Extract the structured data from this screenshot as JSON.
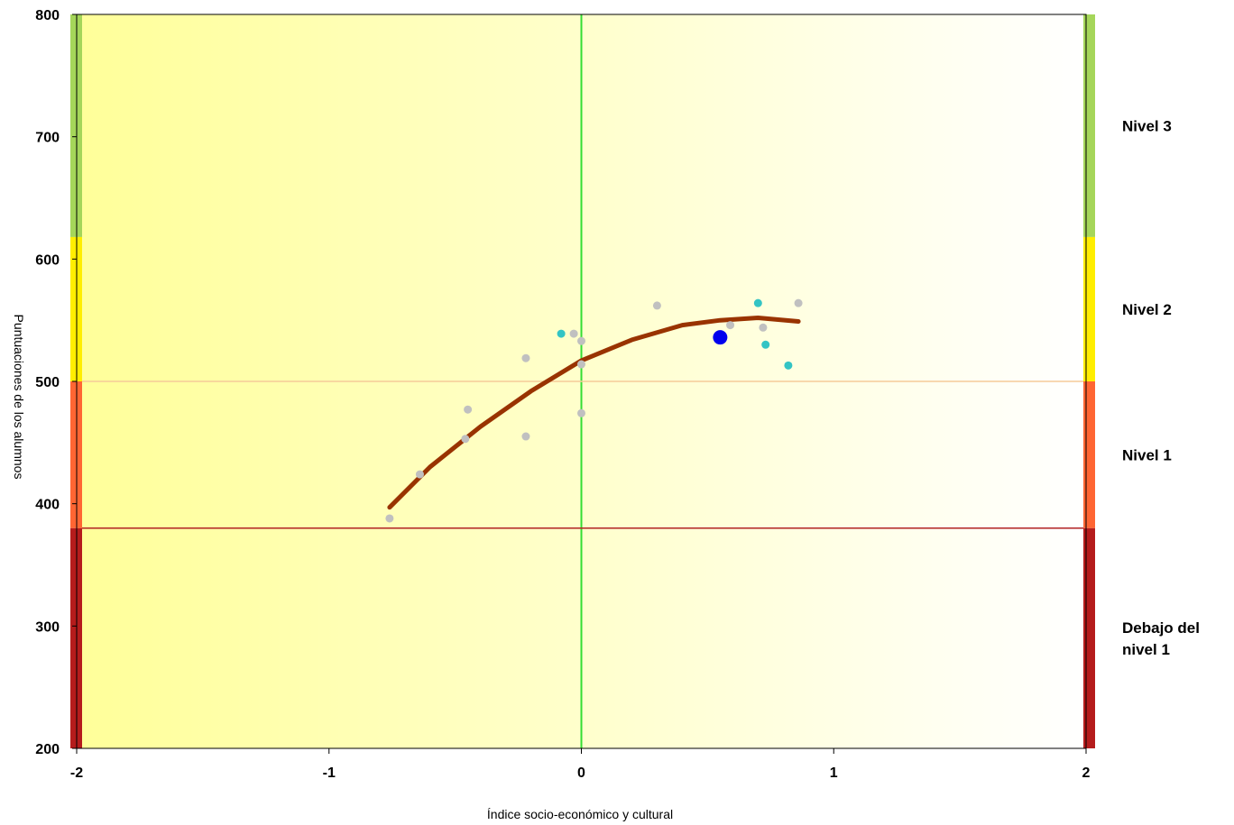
{
  "chart_data": {
    "type": "scatter",
    "title": "",
    "xlabel": "Índice socio-económico y cultural",
    "ylabel": "Puntuaciones de los alumnos",
    "xlim": [
      -2,
      2
    ],
    "ylim": [
      200,
      800
    ],
    "xticks": [
      "-2",
      "-1",
      "0",
      "1",
      "2"
    ],
    "yticks": [
      "200",
      "300",
      "400",
      "500",
      "600",
      "700",
      "800"
    ],
    "grid": false,
    "reference_lines": [
      {
        "axis": "x",
        "value": 0,
        "color": "#33dd33"
      },
      {
        "axis": "y",
        "value": 500,
        "color": "#f5cc99"
      },
      {
        "axis": "y",
        "value": 380,
        "color": "#b22222"
      }
    ],
    "bands": [
      {
        "label_lines": [
          "Nivel 3"
        ],
        "from": 618,
        "to": 800,
        "color": "#a5d65a"
      },
      {
        "label_lines": [
          "Nivel 2"
        ],
        "from": 500,
        "to": 618,
        "color": "#ffee00"
      },
      {
        "label_lines": [
          "Nivel 1"
        ],
        "from": 380,
        "to": 500,
        "color": "#ff6633"
      },
      {
        "label_lines": [
          "Debajo del",
          "nivel 1"
        ],
        "from": 200,
        "to": 380,
        "color": "#b51c1c"
      }
    ],
    "series": [
      {
        "type": "scatter",
        "color": "#c0c0c0",
        "points": [
          [
            -0.76,
            388
          ],
          [
            -0.64,
            424
          ],
          [
            -0.46,
            453
          ],
          [
            -0.45,
            477
          ],
          [
            -0.22,
            455
          ],
          [
            -0.22,
            519
          ],
          [
            -0.03,
            539
          ],
          [
            0.0,
            533
          ],
          [
            0.0,
            514
          ],
          [
            0.0,
            474
          ],
          [
            0.3,
            562
          ],
          [
            0.59,
            546
          ],
          [
            0.72,
            544
          ],
          [
            0.86,
            564
          ]
        ]
      },
      {
        "type": "scatter",
        "color": "#33c4c4",
        "points": [
          [
            -0.08,
            539
          ],
          [
            0.7,
            564
          ],
          [
            0.73,
            530
          ],
          [
            0.82,
            513
          ]
        ]
      },
      {
        "type": "scatter",
        "color": "#0000ee",
        "highlight": true,
        "points": [
          [
            0.55,
            536
          ]
        ]
      },
      {
        "type": "line",
        "color": "#993300",
        "points": [
          [
            -0.76,
            397
          ],
          [
            -0.6,
            430
          ],
          [
            -0.4,
            463
          ],
          [
            -0.2,
            492
          ],
          [
            0.0,
            517
          ],
          [
            0.2,
            534
          ],
          [
            0.4,
            546
          ],
          [
            0.55,
            550
          ],
          [
            0.7,
            552
          ],
          [
            0.86,
            549
          ]
        ]
      }
    ]
  }
}
